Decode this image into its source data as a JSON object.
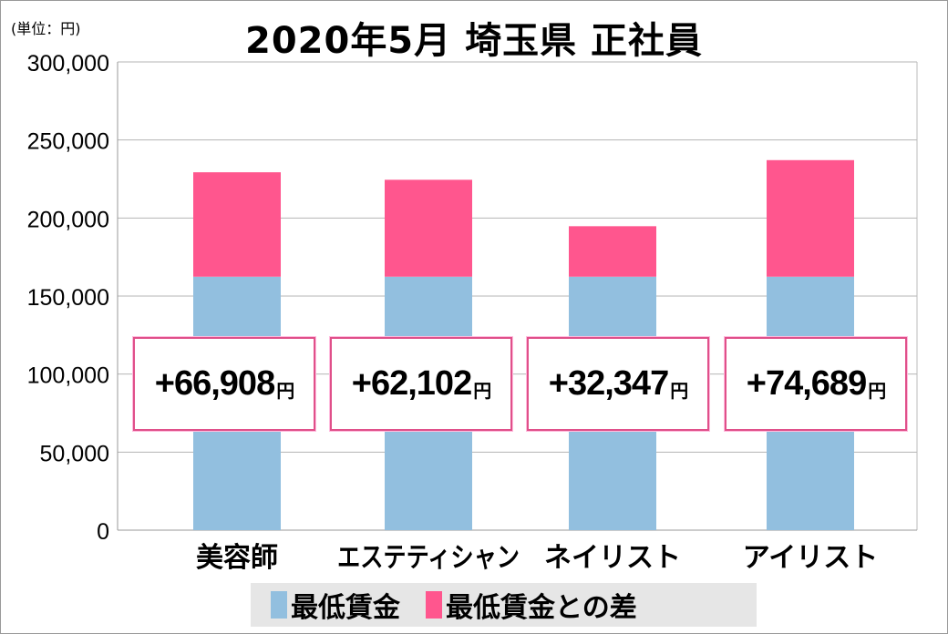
{
  "chart_data": {
    "type": "bar",
    "stacked": true,
    "title": "2020年5月 埼玉県 正社員",
    "unit_label": "(単位：円)",
    "categories": [
      "美容師",
      "エステティシャン",
      "ネイリスト",
      "アイリスト"
    ],
    "series": [
      {
        "name": "最低賃金",
        "color": "#92bfdf",
        "values": [
          162400,
          162400,
          162400,
          162400
        ]
      },
      {
        "name": "最低賃金との差",
        "color": "#ff568e",
        "values": [
          66908,
          62102,
          32347,
          74689
        ]
      }
    ],
    "data_labels": [
      "+66,908",
      "+62,102",
      "+32,347",
      "+74,689"
    ],
    "data_label_unit": "円",
    "yticks": [
      "0",
      "50,000",
      "100,000",
      "150,000",
      "200,000",
      "250,000",
      "300,000"
    ],
    "ylim": [
      0,
      300000
    ],
    "grid": true,
    "legend": "bottom"
  }
}
